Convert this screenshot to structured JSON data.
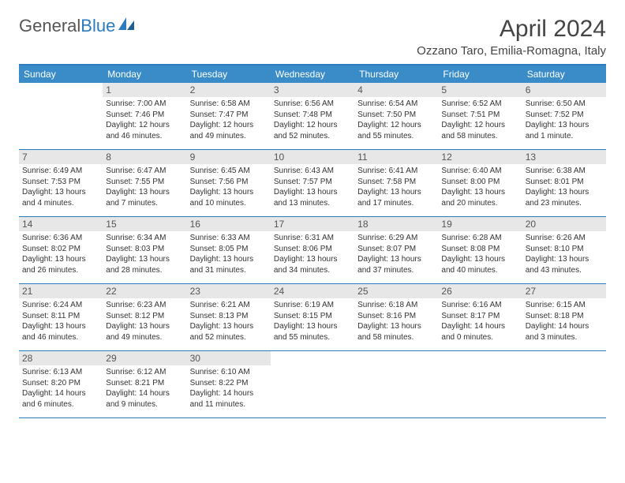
{
  "logo": {
    "text1": "General",
    "text2": "Blue"
  },
  "title": "April 2024",
  "location": "Ozzano Taro, Emilia-Romagna, Italy",
  "colors": {
    "header_bg": "#3a8cc9",
    "border": "#2b7bbf",
    "daynum_bg": "#e7e7e7"
  },
  "dow": [
    "Sunday",
    "Monday",
    "Tuesday",
    "Wednesday",
    "Thursday",
    "Friday",
    "Saturday"
  ],
  "weeks": [
    [
      {
        "n": "",
        "sr": "",
        "ss": "",
        "dl1": "",
        "dl2": ""
      },
      {
        "n": "1",
        "sr": "Sunrise: 7:00 AM",
        "ss": "Sunset: 7:46 PM",
        "dl1": "Daylight: 12 hours",
        "dl2": "and 46 minutes."
      },
      {
        "n": "2",
        "sr": "Sunrise: 6:58 AM",
        "ss": "Sunset: 7:47 PM",
        "dl1": "Daylight: 12 hours",
        "dl2": "and 49 minutes."
      },
      {
        "n": "3",
        "sr": "Sunrise: 6:56 AM",
        "ss": "Sunset: 7:48 PM",
        "dl1": "Daylight: 12 hours",
        "dl2": "and 52 minutes."
      },
      {
        "n": "4",
        "sr": "Sunrise: 6:54 AM",
        "ss": "Sunset: 7:50 PM",
        "dl1": "Daylight: 12 hours",
        "dl2": "and 55 minutes."
      },
      {
        "n": "5",
        "sr": "Sunrise: 6:52 AM",
        "ss": "Sunset: 7:51 PM",
        "dl1": "Daylight: 12 hours",
        "dl2": "and 58 minutes."
      },
      {
        "n": "6",
        "sr": "Sunrise: 6:50 AM",
        "ss": "Sunset: 7:52 PM",
        "dl1": "Daylight: 13 hours",
        "dl2": "and 1 minute."
      }
    ],
    [
      {
        "n": "7",
        "sr": "Sunrise: 6:49 AM",
        "ss": "Sunset: 7:53 PM",
        "dl1": "Daylight: 13 hours",
        "dl2": "and 4 minutes."
      },
      {
        "n": "8",
        "sr": "Sunrise: 6:47 AM",
        "ss": "Sunset: 7:55 PM",
        "dl1": "Daylight: 13 hours",
        "dl2": "and 7 minutes."
      },
      {
        "n": "9",
        "sr": "Sunrise: 6:45 AM",
        "ss": "Sunset: 7:56 PM",
        "dl1": "Daylight: 13 hours",
        "dl2": "and 10 minutes."
      },
      {
        "n": "10",
        "sr": "Sunrise: 6:43 AM",
        "ss": "Sunset: 7:57 PM",
        "dl1": "Daylight: 13 hours",
        "dl2": "and 13 minutes."
      },
      {
        "n": "11",
        "sr": "Sunrise: 6:41 AM",
        "ss": "Sunset: 7:58 PM",
        "dl1": "Daylight: 13 hours",
        "dl2": "and 17 minutes."
      },
      {
        "n": "12",
        "sr": "Sunrise: 6:40 AM",
        "ss": "Sunset: 8:00 PM",
        "dl1": "Daylight: 13 hours",
        "dl2": "and 20 minutes."
      },
      {
        "n": "13",
        "sr": "Sunrise: 6:38 AM",
        "ss": "Sunset: 8:01 PM",
        "dl1": "Daylight: 13 hours",
        "dl2": "and 23 minutes."
      }
    ],
    [
      {
        "n": "14",
        "sr": "Sunrise: 6:36 AM",
        "ss": "Sunset: 8:02 PM",
        "dl1": "Daylight: 13 hours",
        "dl2": "and 26 minutes."
      },
      {
        "n": "15",
        "sr": "Sunrise: 6:34 AM",
        "ss": "Sunset: 8:03 PM",
        "dl1": "Daylight: 13 hours",
        "dl2": "and 28 minutes."
      },
      {
        "n": "16",
        "sr": "Sunrise: 6:33 AM",
        "ss": "Sunset: 8:05 PM",
        "dl1": "Daylight: 13 hours",
        "dl2": "and 31 minutes."
      },
      {
        "n": "17",
        "sr": "Sunrise: 6:31 AM",
        "ss": "Sunset: 8:06 PM",
        "dl1": "Daylight: 13 hours",
        "dl2": "and 34 minutes."
      },
      {
        "n": "18",
        "sr": "Sunrise: 6:29 AM",
        "ss": "Sunset: 8:07 PM",
        "dl1": "Daylight: 13 hours",
        "dl2": "and 37 minutes."
      },
      {
        "n": "19",
        "sr": "Sunrise: 6:28 AM",
        "ss": "Sunset: 8:08 PM",
        "dl1": "Daylight: 13 hours",
        "dl2": "and 40 minutes."
      },
      {
        "n": "20",
        "sr": "Sunrise: 6:26 AM",
        "ss": "Sunset: 8:10 PM",
        "dl1": "Daylight: 13 hours",
        "dl2": "and 43 minutes."
      }
    ],
    [
      {
        "n": "21",
        "sr": "Sunrise: 6:24 AM",
        "ss": "Sunset: 8:11 PM",
        "dl1": "Daylight: 13 hours",
        "dl2": "and 46 minutes."
      },
      {
        "n": "22",
        "sr": "Sunrise: 6:23 AM",
        "ss": "Sunset: 8:12 PM",
        "dl1": "Daylight: 13 hours",
        "dl2": "and 49 minutes."
      },
      {
        "n": "23",
        "sr": "Sunrise: 6:21 AM",
        "ss": "Sunset: 8:13 PM",
        "dl1": "Daylight: 13 hours",
        "dl2": "and 52 minutes."
      },
      {
        "n": "24",
        "sr": "Sunrise: 6:19 AM",
        "ss": "Sunset: 8:15 PM",
        "dl1": "Daylight: 13 hours",
        "dl2": "and 55 minutes."
      },
      {
        "n": "25",
        "sr": "Sunrise: 6:18 AM",
        "ss": "Sunset: 8:16 PM",
        "dl1": "Daylight: 13 hours",
        "dl2": "and 58 minutes."
      },
      {
        "n": "26",
        "sr": "Sunrise: 6:16 AM",
        "ss": "Sunset: 8:17 PM",
        "dl1": "Daylight: 14 hours",
        "dl2": "and 0 minutes."
      },
      {
        "n": "27",
        "sr": "Sunrise: 6:15 AM",
        "ss": "Sunset: 8:18 PM",
        "dl1": "Daylight: 14 hours",
        "dl2": "and 3 minutes."
      }
    ],
    [
      {
        "n": "28",
        "sr": "Sunrise: 6:13 AM",
        "ss": "Sunset: 8:20 PM",
        "dl1": "Daylight: 14 hours",
        "dl2": "and 6 minutes."
      },
      {
        "n": "29",
        "sr": "Sunrise: 6:12 AM",
        "ss": "Sunset: 8:21 PM",
        "dl1": "Daylight: 14 hours",
        "dl2": "and 9 minutes."
      },
      {
        "n": "30",
        "sr": "Sunrise: 6:10 AM",
        "ss": "Sunset: 8:22 PM",
        "dl1": "Daylight: 14 hours",
        "dl2": "and 11 minutes."
      },
      {
        "n": "",
        "sr": "",
        "ss": "",
        "dl1": "",
        "dl2": ""
      },
      {
        "n": "",
        "sr": "",
        "ss": "",
        "dl1": "",
        "dl2": ""
      },
      {
        "n": "",
        "sr": "",
        "ss": "",
        "dl1": "",
        "dl2": ""
      },
      {
        "n": "",
        "sr": "",
        "ss": "",
        "dl1": "",
        "dl2": ""
      }
    ]
  ]
}
